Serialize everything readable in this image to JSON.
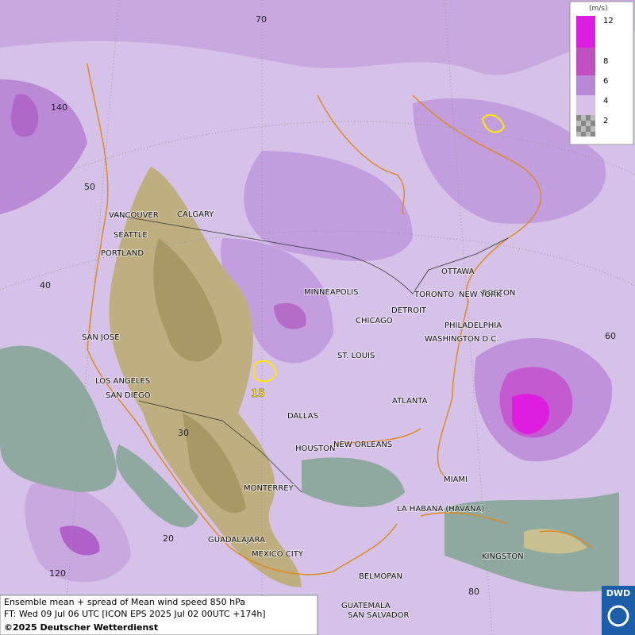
{
  "map": {
    "legend": {
      "unit": "(m/s)",
      "levels": [
        12,
        8,
        6,
        4,
        2
      ]
    },
    "cities": [
      "VANCOUVER",
      "CALGARY",
      "SEATTLE",
      "PORTLAND",
      "SAN JOSE",
      "LOS ANGELES",
      "SAN DIEGO",
      "MINNEAPOLIS",
      "TORONTO",
      "OTTAWA",
      "BOSTON",
      "DETROIT",
      "CHICAGO",
      "NEW YORK",
      "PHILADELPHIA",
      "WASHINGTON D.C.",
      "ST. LOUIS",
      "ATLANTA",
      "DALLAS",
      "HOUSTON",
      "NEW ORLEANS",
      "MIAMI",
      "MONTERREY",
      "LA HABANA (HAVANA)",
      "GUADALAJARA",
      "MEXICO CITY",
      "KINGSTON",
      "BELMOPAN",
      "GUATEMALA",
      "SAN SALVADOR"
    ],
    "grid_labels": [
      "70",
      "140",
      "50",
      "40",
      "30",
      "20",
      "120",
      "60",
      "80"
    ],
    "contour_label": "15",
    "footer": {
      "line1": "Ensemble mean + spread of Mean wind speed 850 hPa",
      "line2": "FT: Wed 09 Jul 06 UTC [ICON EPS 2025 Jul 02 00UTC +174h]",
      "line3": "©2025 Deutscher Wetterdienst"
    },
    "logo": "DWD"
  }
}
